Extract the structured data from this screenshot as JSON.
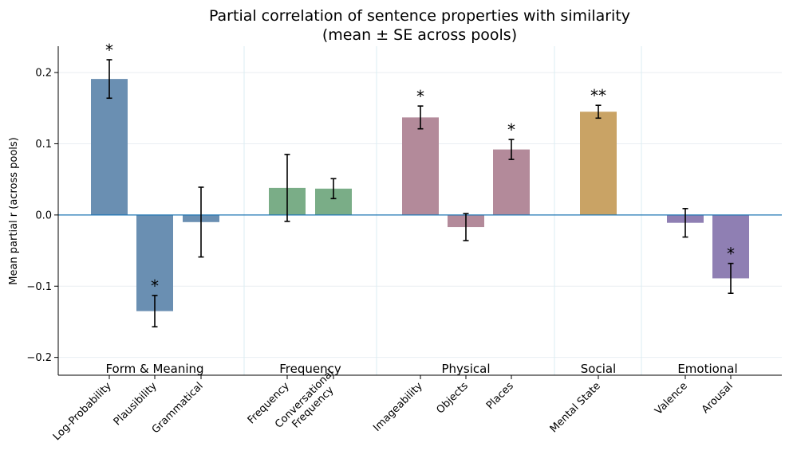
{
  "chart_data": {
    "type": "bar",
    "title": "Partial correlation of sentence properties with similarity",
    "subtitle": "(mean ± SE across pools)",
    "ylabel": "Mean partial r (across pools)",
    "xlabel": "",
    "ylim": [
      -0.225,
      0.237
    ],
    "yticks": [
      -0.2,
      -0.1,
      0.0,
      0.1,
      0.2
    ],
    "ytick_labels": [
      "−0.2",
      "−0.1",
      "0.0",
      "0.1",
      "0.2"
    ],
    "grid": "horizontal, light",
    "zero_line_color": "#1f77b4",
    "groups": [
      {
        "label": "Form & Meaning",
        "color": "#6a8fb2",
        "bars": [
          {
            "label": "Log-Probability",
            "value": 0.191,
            "se": 0.027,
            "sig": "*"
          },
          {
            "label": "Plausibility",
            "value": -0.135,
            "se": 0.022,
            "sig": "*"
          },
          {
            "label": "Grammatical",
            "value": -0.01,
            "se": 0.049,
            "sig": ""
          }
        ]
      },
      {
        "label": "Frequency",
        "color": "#7aad87",
        "bars": [
          {
            "label": "Frequency",
            "value": 0.038,
            "se": 0.047,
            "sig": ""
          },
          {
            "label": "Conversational\nFrequency",
            "value": 0.037,
            "se": 0.014,
            "sig": ""
          }
        ]
      },
      {
        "label": "Physical",
        "color": "#b38a9a",
        "bars": [
          {
            "label": "Imageability",
            "value": 0.137,
            "se": 0.016,
            "sig": "*"
          },
          {
            "label": "Objects",
            "value": -0.017,
            "se": 0.019,
            "sig": ""
          },
          {
            "label": "Places",
            "value": 0.092,
            "se": 0.014,
            "sig": "*"
          }
        ]
      },
      {
        "label": "Social",
        "color": "#c9a365",
        "bars": [
          {
            "label": "Mental State",
            "value": 0.145,
            "se": 0.009,
            "sig": "**"
          }
        ]
      },
      {
        "label": "Emotional",
        "color": "#8f7fb3",
        "bars": [
          {
            "label": "Valence",
            "value": -0.011,
            "se": 0.02,
            "sig": ""
          },
          {
            "label": "Arousal",
            "value": -0.089,
            "se": 0.021,
            "sig": "*"
          }
        ]
      }
    ]
  }
}
